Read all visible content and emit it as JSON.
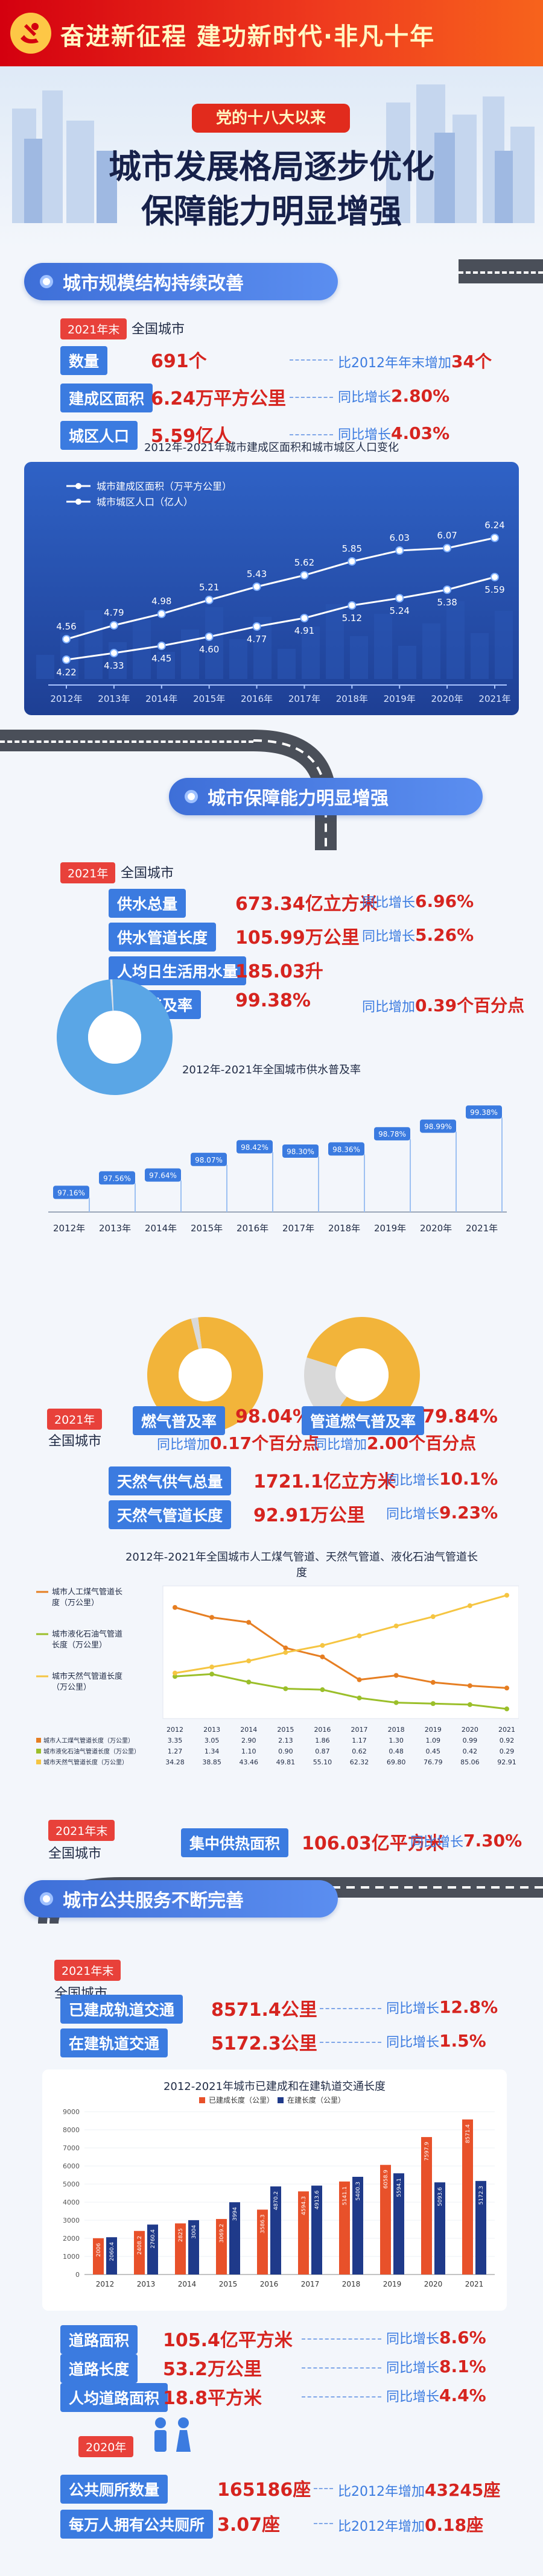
{
  "banner": {
    "title": "奋进新征程 建功新时代·非凡十年"
  },
  "hero": {
    "tag": "党的十八大以来",
    "title_line1": "城市发展格局逐步优化",
    "title_line2": "保障能力明显增强"
  },
  "section1": {
    "title": "城市规模结构持续改善",
    "year": "2021年末",
    "scope": "全国城市",
    "stats": [
      {
        "label": "数量",
        "value": "691个",
        "cmp_text": "比2012年年末增加",
        "cmp_value": "34个"
      },
      {
        "label": "建成区面积",
        "value": "6.24万平方公里",
        "cmp_text": "同比增长",
        "cmp_value": "2.80%"
      },
      {
        "label": "城区人口",
        "value": "5.59亿人",
        "cmp_text": "同比增长",
        "cmp_value": "4.03%"
      }
    ]
  },
  "section2": {
    "title": "城市保障能力明显增强",
    "year": "2021年",
    "scope": "全国城市",
    "water_stats": [
      {
        "label": "供水总量",
        "value": "673.34亿立方米",
        "cmp_text": "同比增长",
        "cmp_value": "6.96%"
      },
      {
        "label": "供水管道长度",
        "value": "105.99万公里",
        "cmp_text": "同比增长",
        "cmp_value": "5.26%"
      },
      {
        "label": "人均日生活用水量",
        "value": "185.03升",
        "cmp_text": "",
        "cmp_value": ""
      },
      {
        "label": "供水普及率",
        "value": "99.38%",
        "cmp_text": "同比增加",
        "cmp_value": "0.39个百分点"
      }
    ],
    "gas_year": "2021年",
    "gas_scope": "全国城市",
    "gas_rates": [
      {
        "label": "燃气普及率",
        "value": "98.04%",
        "cmp_text": "同比增加",
        "cmp_value": "0.17个百分点"
      },
      {
        "label": "管道燃气普及率",
        "value": "79.84%",
        "cmp_text": "同比增加",
        "cmp_value": "2.00个百分点"
      }
    ],
    "gas_stats": [
      {
        "label": "天然气供气总量",
        "value": "1721.1亿立方米",
        "cmp_text": "同比增长",
        "cmp_value": "10.1%"
      },
      {
        "label": "天然气管道长度",
        "value": "92.91万公里",
        "cmp_text": "同比增长",
        "cmp_value": "9.23%"
      }
    ],
    "heat_year": "2021年末",
    "heat_scope": "全国城市",
    "heat_stat": {
      "label": "集中供热面积",
      "value": "106.03亿平方米",
      "cmp_text": "同比增长",
      "cmp_value": "7.30%"
    }
  },
  "section3": {
    "title": "城市公共服务不断完善",
    "year": "2021年末",
    "scope": "全国城市",
    "rail_stats": [
      {
        "label": "已建成轨道交通",
        "value": "8571.4公里",
        "cmp_text": "同比增长",
        "cmp_value": "12.8%"
      },
      {
        "label": "在建轨道交通",
        "value": "5172.3公里",
        "cmp_text": "同比增长",
        "cmp_value": "1.5%"
      }
    ],
    "road_stats": [
      {
        "label": "道路面积",
        "value": "105.4亿平方米",
        "cmp_text": "同比增长",
        "cmp_value": "8.6%"
      },
      {
        "label": "道路长度",
        "value": "53.2万公里",
        "cmp_text": "同比增长",
        "cmp_value": "8.1%"
      },
      {
        "label": "人均道路面积",
        "value": "18.8平方米",
        "cmp_text": "同比增长",
        "cmp_value": "4.4%"
      }
    ],
    "toilet_year": "2020年",
    "toilet_stats": [
      {
        "label": "公共厕所数量",
        "value": "165186座",
        "cmp_text": "比2012年增加",
        "cmp_value": "43245座"
      },
      {
        "label": "每万人拥有公共厕所",
        "value": "3.07座",
        "cmp_text": "比2012年增加",
        "cmp_value": "0.18座"
      }
    ]
  },
  "chart_data": [
    {
      "type": "line",
      "title": "2012年-2021年城市建成区面积和城市城区人口变化",
      "x": [
        "2012年",
        "2013年",
        "2014年",
        "2015年",
        "2016年",
        "2017年",
        "2018年",
        "2019年",
        "2020年",
        "2021年"
      ],
      "series": [
        {
          "name": "城市建成区面积（万平方公里）",
          "values": [
            4.56,
            4.79,
            4.98,
            5.21,
            5.43,
            5.62,
            5.85,
            6.03,
            6.07,
            6.24
          ]
        },
        {
          "name": "城市城区人口（亿人）",
          "values": [
            4.22,
            4.33,
            4.45,
            4.6,
            4.77,
            4.91,
            5.12,
            5.24,
            5.38,
            5.59
          ]
        }
      ],
      "colors": [
        "#ffffff",
        "#ffffff"
      ]
    },
    {
      "type": "pie",
      "values": [
        99.38,
        0.62
      ],
      "colors": [
        "#5aa6e6",
        "#dfe4ea"
      ]
    },
    {
      "type": "bar",
      "title": "2012年-2021年全国城市供水普及率",
      "categories": [
        "2012年",
        "2013年",
        "2014年",
        "2015年",
        "2016年",
        "2017年",
        "2018年",
        "2019年",
        "2020年",
        "2021年"
      ],
      "values": [
        97.16,
        97.56,
        97.64,
        98.07,
        98.42,
        98.3,
        98.36,
        98.78,
        98.99,
        99.38
      ],
      "value_labels": [
        "97.16%",
        "97.56%",
        "97.64%",
        "98.07%",
        "98.42%",
        "98.30%",
        "98.36%",
        "98.78%",
        "98.99%",
        "99.38%"
      ],
      "colors": [
        "#3b7be0"
      ]
    },
    {
      "type": "pie",
      "values": [
        98.04,
        1.96
      ],
      "colors": [
        "#f2b43a",
        "#d9d9d9"
      ]
    },
    {
      "type": "pie",
      "values": [
        79.84,
        20.16
      ],
      "colors": [
        "#f2b43a",
        "#d9d9d9"
      ]
    },
    {
      "type": "line",
      "title": "2012年-2021年全国城市人工煤气管道、天然气管道、液化石油气管道长度",
      "x": [
        "2012",
        "2013",
        "2014",
        "2015",
        "2016",
        "2017",
        "2018",
        "2019",
        "2020",
        "2021"
      ],
      "series": [
        {
          "name": "城市人工煤气管道长度（万公里）",
          "values": [
            3.35,
            3.05,
            2.9,
            2.13,
            1.86,
            1.17,
            1.3,
            1.09,
            0.99,
            0.92
          ]
        },
        {
          "name": "城市液化石油气管道长度（万公里）",
          "values": [
            1.27,
            1.34,
            1.1,
            0.9,
            0.87,
            0.62,
            0.48,
            0.45,
            0.42,
            0.29
          ]
        },
        {
          "name": "城市天然气管道长度（万公里）",
          "values": [
            34.28,
            38.85,
            43.46,
            49.81,
            55.1,
            62.32,
            69.8,
            76.79,
            85.06,
            92.91
          ]
        }
      ],
      "colors": [
        "#e67e22",
        "#9bbf2a",
        "#f5c542"
      ]
    },
    {
      "type": "bar",
      "title": "2012-2021年城市已建成和在建轨道交通长度",
      "categories": [
        "2012",
        "2013",
        "2014",
        "2015",
        "2016",
        "2017",
        "2018",
        "2019",
        "2020",
        "2021"
      ],
      "series": [
        {
          "name": "已建成长度（公里）",
          "values": [
            2006,
            2408.2,
            2825,
            3069.2,
            3586.3,
            4594.3,
            5141.1,
            6058.9,
            7597.9,
            8571.4
          ]
        },
        {
          "name": "在建长度（公里）",
          "values": [
            2060.4,
            2760.4,
            3004,
            3994,
            4870.2,
            4913.6,
            5400.3,
            5594.1,
            5093.6,
            5172.3
          ]
        }
      ],
      "ylim": [
        0,
        9000
      ],
      "yticks": [
        0,
        1000,
        2000,
        3000,
        4000,
        5000,
        6000,
        7000,
        8000,
        9000
      ],
      "colors": [
        "#e8512a",
        "#1f3a8a"
      ]
    }
  ]
}
